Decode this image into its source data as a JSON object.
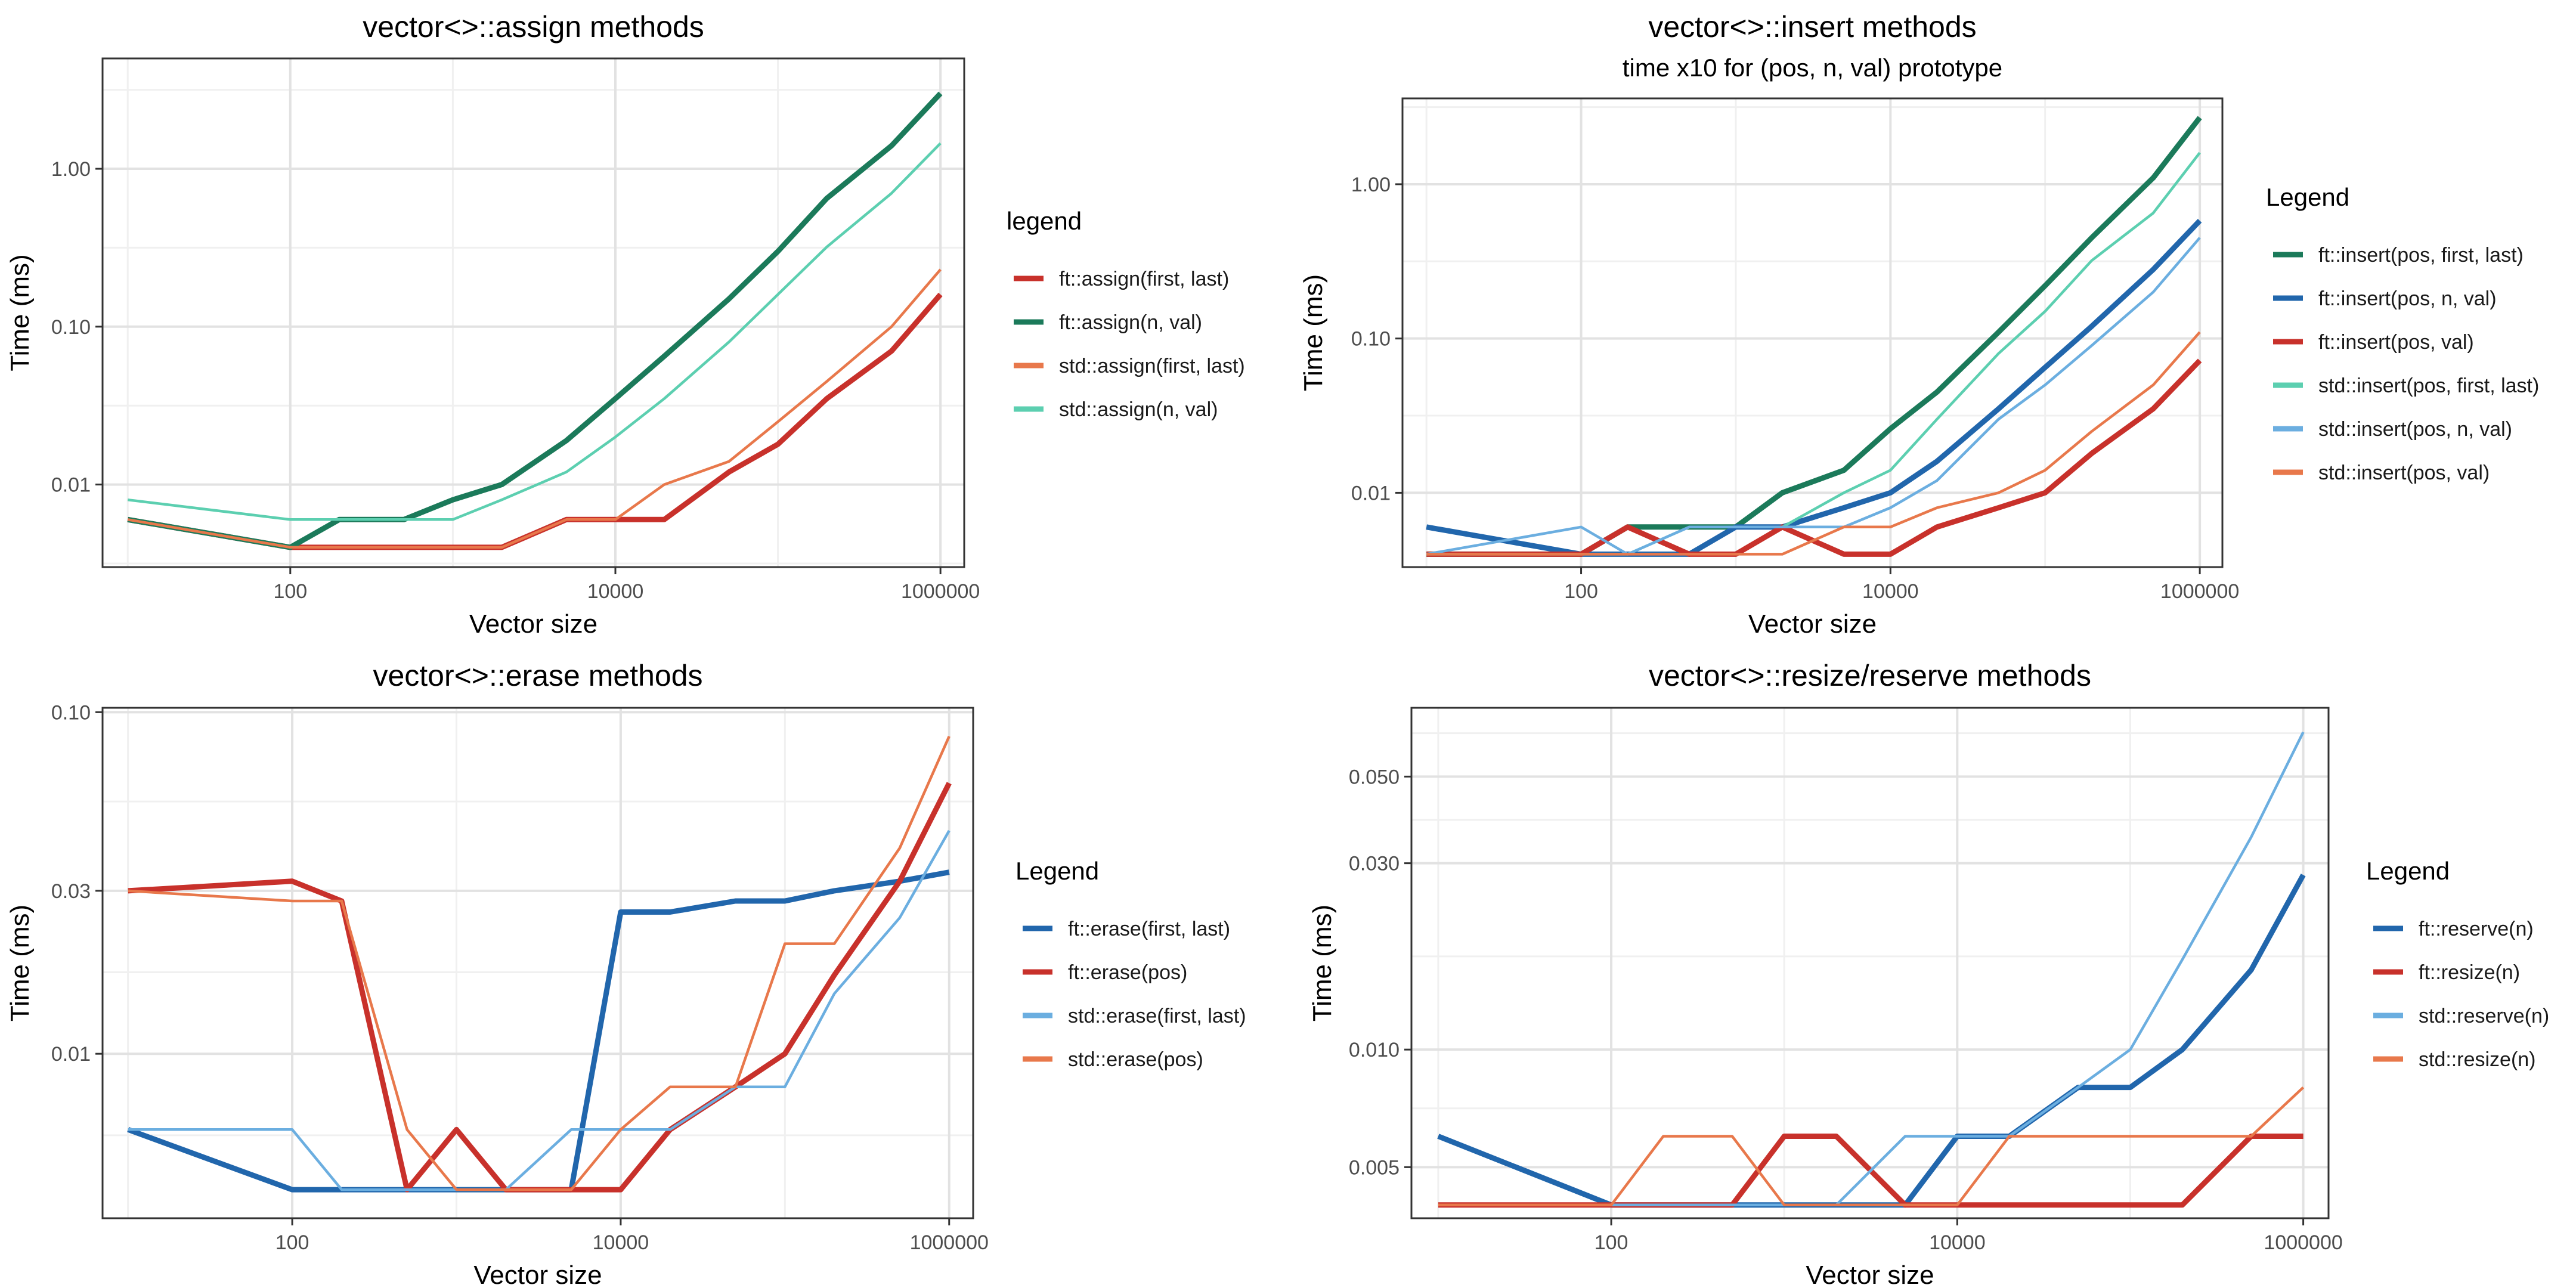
{
  "chart_data": [
    {
      "type": "line",
      "title": "vector<>::assign methods",
      "subtitle": "",
      "xlabel": "Vector size",
      "ylabel": "Time (ms)",
      "xscale": "log10",
      "yscale": "log10",
      "xlim": [
        7,
        1400000
      ],
      "ylim": [
        0.003,
        5.0
      ],
      "xticks": [
        100,
        10000,
        1000000
      ],
      "xtick_labels": [
        "100",
        "10000",
        "1000000"
      ],
      "yticks": [
        0.01,
        0.1,
        1.0
      ],
      "ytick_labels": [
        "0.01",
        "0.10",
        "1.00"
      ],
      "grid": true,
      "legend_title": "legend",
      "legend_position": "right",
      "x": [
        10,
        100,
        200,
        500,
        1000,
        2000,
        5000,
        10000,
        20000,
        50000,
        100000,
        200000,
        500000,
        1000000
      ],
      "series": [
        {
          "name": "ft::assign(first, last)",
          "color": "#c8312b",
          "width": "thick",
          "values": [
            0.006,
            0.004,
            0.004,
            0.004,
            0.004,
            0.004,
            0.006,
            0.006,
            0.006,
            0.012,
            0.018,
            0.035,
            0.07,
            0.16
          ]
        },
        {
          "name": "ft::assign(n, val)",
          "color": "#1b7a5a",
          "width": "thick",
          "values": [
            0.006,
            0.004,
            0.006,
            0.006,
            0.008,
            0.01,
            0.019,
            0.035,
            0.065,
            0.15,
            0.3,
            0.65,
            1.4,
            3.0
          ]
        },
        {
          "name": "std::assign(first, last)",
          "color": "#e8784b",
          "width": "thin",
          "values": [
            0.006,
            0.004,
            0.004,
            0.004,
            0.004,
            0.004,
            0.006,
            0.006,
            0.01,
            0.014,
            0.025,
            0.045,
            0.1,
            0.23
          ]
        },
        {
          "name": "std::assign(n, val)",
          "color": "#5ccfb0",
          "width": "thin",
          "values": [
            0.008,
            0.006,
            0.006,
            0.006,
            0.006,
            0.008,
            0.012,
            0.02,
            0.035,
            0.08,
            0.16,
            0.32,
            0.7,
            1.45
          ]
        }
      ]
    },
    {
      "type": "line",
      "title": "vector<>::insert methods",
      "subtitle": "time x10 for (pos, n, val) prototype",
      "xlabel": "Vector size",
      "ylabel": "Time (ms)",
      "xscale": "log10",
      "yscale": "log10",
      "xlim": [
        7,
        1400000
      ],
      "ylim": [
        0.0033,
        3.6
      ],
      "xticks": [
        100,
        10000,
        1000000
      ],
      "xtick_labels": [
        "100",
        "10000",
        "1000000"
      ],
      "yticks": [
        0.01,
        0.1,
        1.0
      ],
      "ytick_labels": [
        "0.01",
        "0.10",
        "1.00"
      ],
      "grid": true,
      "legend_title": "Legend",
      "legend_position": "right",
      "x": [
        10,
        100,
        200,
        500,
        1000,
        2000,
        5000,
        10000,
        20000,
        50000,
        100000,
        200000,
        500000,
        1000000
      ],
      "series": [
        {
          "name": "ft::insert(pos, first, last)",
          "color": "#1b7a5a",
          "width": "thick",
          "values": [
            0.004,
            0.004,
            0.006,
            0.006,
            0.006,
            0.01,
            0.014,
            0.026,
            0.045,
            0.11,
            0.22,
            0.45,
            1.1,
            2.7
          ]
        },
        {
          "name": "ft::insert(pos, n, val)",
          "color": "#2166ac",
          "width": "thick",
          "values": [
            0.006,
            0.004,
            0.004,
            0.004,
            0.006,
            0.006,
            0.008,
            0.01,
            0.016,
            0.035,
            0.065,
            0.12,
            0.28,
            0.58
          ]
        },
        {
          "name": "ft::insert(pos, val)",
          "color": "#c8312b",
          "width": "thick",
          "values": [
            0.004,
            0.004,
            0.006,
            0.004,
            0.004,
            0.006,
            0.004,
            0.004,
            0.006,
            0.008,
            0.01,
            0.018,
            0.035,
            0.072
          ]
        },
        {
          "name": "std::insert(pos, first, last)",
          "color": "#5ccfb0",
          "width": "thin",
          "values": [
            0.004,
            0.004,
            0.004,
            0.006,
            0.006,
            0.006,
            0.01,
            0.014,
            0.03,
            0.08,
            0.15,
            0.32,
            0.65,
            1.6
          ]
        },
        {
          "name": "std::insert(pos, n, val)",
          "color": "#6baee0",
          "width": "thin",
          "values": [
            0.004,
            0.006,
            0.004,
            0.006,
            0.006,
            0.006,
            0.006,
            0.008,
            0.012,
            0.03,
            0.05,
            0.09,
            0.2,
            0.45
          ]
        },
        {
          "name": "std::insert(pos, val)",
          "color": "#e8784b",
          "width": "thin",
          "values": [
            0.004,
            0.004,
            0.004,
            0.004,
            0.004,
            0.004,
            0.006,
            0.006,
            0.008,
            0.01,
            0.014,
            0.025,
            0.05,
            0.11
          ]
        }
      ]
    },
    {
      "type": "line",
      "title": "vector<>::erase methods",
      "subtitle": "",
      "xlabel": "Vector size",
      "ylabel": "Time (ms)",
      "xscale": "log10",
      "yscale": "log10",
      "xlim": [
        7,
        1400000
      ],
      "ylim": [
        0.0033,
        0.103
      ],
      "xticks": [
        100,
        10000,
        1000000
      ],
      "xtick_labels": [
        "100",
        "10000",
        "1000000"
      ],
      "yticks": [
        0.01,
        0.03,
        0.1
      ],
      "ytick_labels": [
        "0.01",
        "0.03",
        "0.10"
      ],
      "grid": true,
      "legend_title": "Legend",
      "legend_position": "right",
      "x": [
        10,
        100,
        200,
        500,
        1000,
        2000,
        5000,
        10000,
        20000,
        50000,
        100000,
        200000,
        500000,
        1000000
      ],
      "series": [
        {
          "name": "ft::erase(first, last)",
          "color": "#2166ac",
          "width": "thick",
          "values": [
            0.006,
            0.004,
            0.004,
            0.004,
            0.004,
            0.004,
            0.004,
            0.026,
            0.026,
            0.028,
            0.028,
            0.03,
            0.032,
            0.034
          ]
        },
        {
          "name": "ft::erase(pos)",
          "color": "#c8312b",
          "width": "thick",
          "values": [
            0.03,
            0.032,
            0.028,
            0.004,
            0.006,
            0.004,
            0.004,
            0.004,
            0.006,
            0.008,
            0.01,
            0.017,
            0.032,
            0.062
          ]
        },
        {
          "name": "std::erase(first, last)",
          "color": "#6baee0",
          "width": "thin",
          "values": [
            0.006,
            0.006,
            0.004,
            0.004,
            0.004,
            0.004,
            0.006,
            0.006,
            0.006,
            0.008,
            0.008,
            0.015,
            0.025,
            0.045
          ]
        },
        {
          "name": "std::erase(pos)",
          "color": "#e8784b",
          "width": "thin",
          "values": [
            0.03,
            0.028,
            0.028,
            0.006,
            0.004,
            0.004,
            0.004,
            0.006,
            0.008,
            0.008,
            0.021,
            0.021,
            0.04,
            0.085
          ]
        }
      ]
    },
    {
      "type": "line",
      "title": "vector<>::resize/reserve methods",
      "subtitle": "",
      "xlabel": "Vector size",
      "ylabel": "Time (ms)",
      "xscale": "log10",
      "yscale": "log10",
      "xlim": [
        7,
        1400000
      ],
      "ylim": [
        0.0037,
        0.075
      ],
      "xticks": [
        100,
        10000,
        1000000
      ],
      "xtick_labels": [
        "100",
        "10000",
        "1000000"
      ],
      "yticks": [
        0.005,
        0.01,
        0.03,
        0.05
      ],
      "ytick_labels": [
        "0.005",
        "0.010",
        "0.030",
        "0.050"
      ],
      "grid": true,
      "legend_title": "Legend",
      "legend_position": "right",
      "x": [
        10,
        100,
        200,
        500,
        1000,
        2000,
        5000,
        10000,
        20000,
        50000,
        100000,
        200000,
        500000,
        1000000
      ],
      "series": [
        {
          "name": "ft::reserve(n)",
          "color": "#2166ac",
          "width": "thick",
          "values": [
            0.006,
            0.004,
            0.004,
            0.004,
            0.004,
            0.004,
            0.004,
            0.006,
            0.006,
            0.008,
            0.008,
            0.01,
            0.016,
            0.028
          ]
        },
        {
          "name": "ft::resize(n)",
          "color": "#c8312b",
          "width": "thick",
          "values": [
            0.004,
            0.004,
            0.004,
            0.004,
            0.006,
            0.006,
            0.004,
            0.004,
            0.004,
            0.004,
            0.004,
            0.004,
            0.006,
            0.006
          ]
        },
        {
          "name": "std::reserve(n)",
          "color": "#6baee0",
          "width": "thin",
          "values": [
            0.004,
            0.004,
            0.004,
            0.004,
            0.004,
            0.004,
            0.006,
            0.006,
            0.006,
            0.008,
            0.01,
            0.017,
            0.035,
            0.065
          ]
        },
        {
          "name": "std::resize(n)",
          "color": "#e8784b",
          "width": "thin",
          "values": [
            0.004,
            0.004,
            0.006,
            0.006,
            0.004,
            0.004,
            0.004,
            0.004,
            0.006,
            0.006,
            0.006,
            0.006,
            0.006,
            0.008
          ]
        }
      ]
    }
  ]
}
